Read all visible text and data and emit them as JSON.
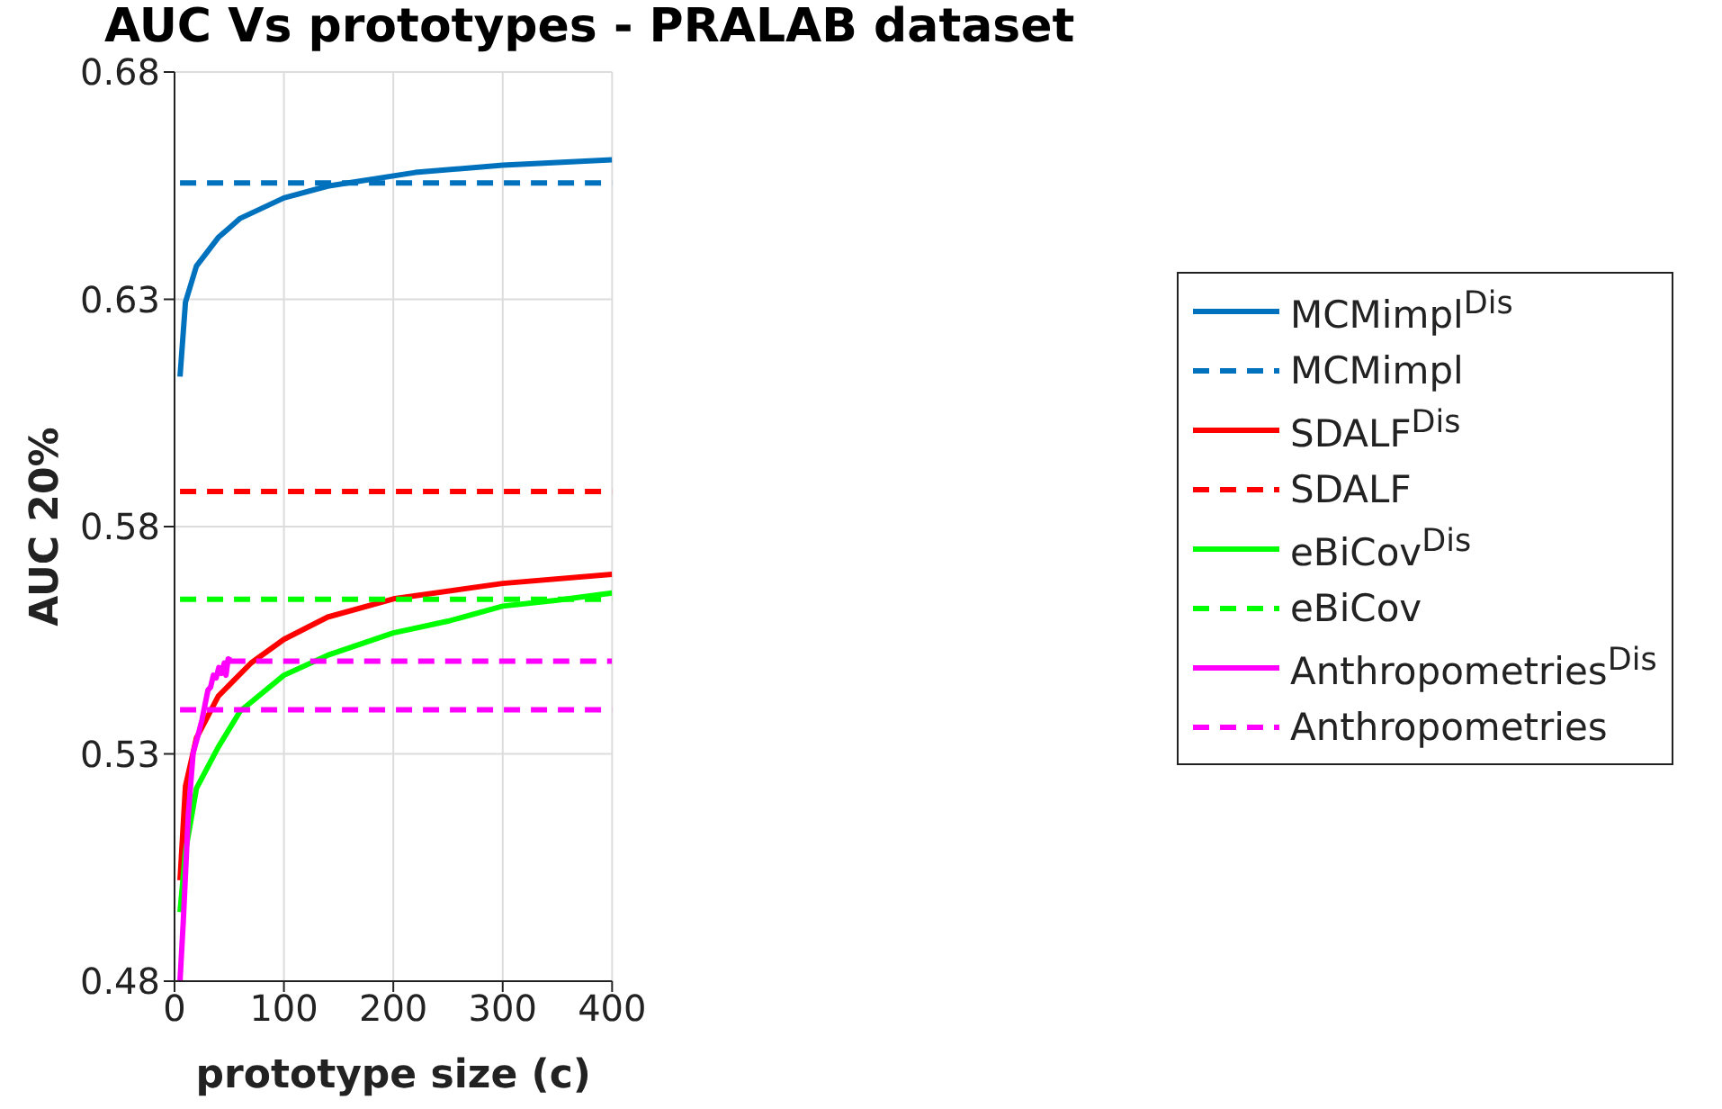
{
  "chart_data": {
    "type": "line",
    "title": "AUC Vs prototypes - PRALAB dataset",
    "xlabel": "prototype size (c)",
    "ylabel": "AUC 20%",
    "xlim": [
      0,
      400
    ],
    "xticks": [
      0,
      100,
      200,
      300,
      400
    ],
    "ylim": [
      0.48,
      0.68
    ],
    "yticks": [
      0.48,
      0.53,
      0.58,
      0.63,
      0.68
    ],
    "grid": true,
    "legend": "right",
    "marker": "none",
    "series": [
      {
        "name": "MCMimpl$^{Dis}$",
        "color": "#0072bd",
        "line_style": "solid",
        "x": [
          5,
          10,
          20,
          40,
          60,
          100,
          140,
          220,
          300,
          400
        ],
        "values": [
          0.613,
          0.6294,
          0.6373,
          0.6436,
          0.6478,
          0.6523,
          0.6549,
          0.6579,
          0.6595,
          0.6607
        ]
      },
      {
        "name": "MCMimpl",
        "color": "#0072bd",
        "line_style": "dashed",
        "x": [
          5,
          400
        ],
        "values": [
          0.6556,
          0.6556
        ]
      },
      {
        "name": "SDALF$^{Dis}$",
        "color": "#ff0000",
        "line_style": "solid",
        "x": [
          5,
          10,
          20,
          40,
          70,
          100,
          140,
          200,
          300,
          400
        ],
        "values": [
          0.5022,
          0.5229,
          0.5335,
          0.5427,
          0.55,
          0.5552,
          0.5601,
          0.5641,
          0.5675,
          0.5695
        ]
      },
      {
        "name": "SDALF",
        "color": "#ff0000",
        "line_style": "dashed",
        "x": [
          5,
          400
        ],
        "values": [
          0.5877,
          0.5877
        ]
      },
      {
        "name": "eBiCov$^{Dis}$",
        "color": "#00ff00",
        "line_style": "solid",
        "x": [
          5,
          10,
          20,
          40,
          60,
          100,
          140,
          200,
          250,
          300,
          350,
          400
        ],
        "values": [
          0.4952,
          0.5085,
          0.5224,
          0.5315,
          0.5394,
          0.5473,
          0.5517,
          0.5566,
          0.5592,
          0.5625,
          0.5638,
          0.5654
        ]
      },
      {
        "name": "eBiCov",
        "color": "#00ff00",
        "line_style": "dashed",
        "x": [
          5,
          400
        ],
        "values": [
          0.564,
          0.564
        ]
      },
      {
        "name": "Anthropometries$^{Dis}$",
        "color": "#ff00ff",
        "line_style": "solid",
        "x": [
          5,
          8,
          12.5,
          17,
          21.5,
          25,
          30.5,
          33,
          35.5,
          38,
          40.5,
          43,
          45.5,
          47,
          49,
          51.5
        ],
        "values": [
          0.48,
          0.4932,
          0.5163,
          0.5302,
          0.5341,
          0.5374,
          0.544,
          0.5447,
          0.5473,
          0.5467,
          0.549,
          0.5477,
          0.55,
          0.5473,
          0.5509,
          0.5506
        ]
      },
      {
        "name": "Anthropometries",
        "color": "#ff00ff",
        "line_style": "dashed",
        "x": [
          5,
          400
        ],
        "values": [
          0.5397,
          0.5397
        ]
      },
      {
        "color": "#ff00ff",
        "line_style": "dashed",
        "x": [
          50,
          400
        ],
        "values": [
          0.5504,
          0.5504
        ]
      }
    ]
  }
}
